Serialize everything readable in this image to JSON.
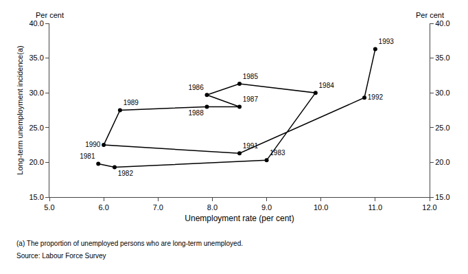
{
  "chart_data": {
    "type": "line",
    "x": [
      5.9,
      6.2,
      9.0,
      9.9,
      8.5,
      7.9,
      8.5,
      7.9,
      6.3,
      6.0,
      8.5,
      10.8,
      11.0
    ],
    "values": [
      19.8,
      19.3,
      20.3,
      30.0,
      31.3,
      29.7,
      28.0,
      28.0,
      27.5,
      22.5,
      21.3,
      29.3,
      36.3
    ],
    "labels": [
      "1981",
      "1982",
      "1983",
      "1984",
      "1985",
      "1986",
      "1987",
      "1988",
      "1989",
      "1990",
      "1991",
      "1992",
      "1993"
    ],
    "color": "#000000",
    "marker": "circle",
    "line_style": "solid",
    "xlabel": "Unemployment rate (per cent)",
    "ylabel": "Long-term unemployment incidence(a)",
    "ylabel_top": "Per cent",
    "y2label_top": "Per cent",
    "footnote": "(a) The proportion of unemployed persons who are long-term unemployed.",
    "source": "Source: Labour Force Survey",
    "xlim": [
      5.0,
      12.0
    ],
    "xticks": [
      {
        "value": 5.0,
        "label": "5.0"
      },
      {
        "value": 6.0,
        "label": "6.0"
      },
      {
        "value": 7.0,
        "label": "7.0"
      },
      {
        "value": 8.0,
        "label": "8.0"
      },
      {
        "value": 9.0,
        "label": "9.0"
      },
      {
        "value": 10.0,
        "label": "10.0"
      },
      {
        "value": 11.0,
        "label": "11.0"
      },
      {
        "value": 12.0,
        "label": "12.0"
      }
    ],
    "ylim": [
      15.0,
      40.0
    ],
    "yticks": [
      {
        "value": 15.0,
        "label": "15.0"
      },
      {
        "value": 20.0,
        "label": "20.0"
      },
      {
        "value": 25.0,
        "label": "25.0"
      },
      {
        "value": 30.0,
        "label": "30.0"
      },
      {
        "value": 35.0,
        "label": "35.0"
      },
      {
        "value": 40.0,
        "label": "40.0"
      }
    ],
    "y2lim": [
      15.0,
      40.0
    ],
    "y2ticks": [
      {
        "value": 15.0,
        "label": "15.0"
      },
      {
        "value": 20.0,
        "label": "20.0"
      },
      {
        "value": 25.0,
        "label": "25.0"
      },
      {
        "value": 30.0,
        "label": "30.0"
      },
      {
        "value": 35.0,
        "label": "35.0"
      },
      {
        "value": 40.0,
        "label": "40.0"
      }
    ],
    "grid": false
  }
}
